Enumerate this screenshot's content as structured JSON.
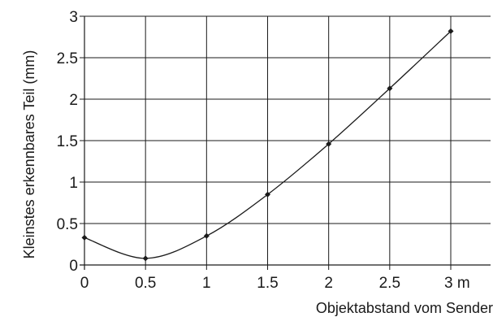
{
  "chart_data": {
    "type": "line",
    "xlabel": "Objektabstand vom Sender",
    "ylabel": "Kleinstes erkennbares Teil (mm)",
    "xlim": [
      0,
      3
    ],
    "ylim": [
      0,
      3
    ],
    "x_ticks": [
      "0",
      "0.5",
      "1",
      "1.5",
      "2",
      "2.5",
      "3 m"
    ],
    "y_ticks": [
      "0",
      "0.5",
      "1",
      "1.5",
      "2",
      "2.5",
      "3"
    ],
    "grid": true,
    "series": [
      {
        "x": [
          0,
          0.5,
          1,
          1.5,
          2,
          2.5,
          3
        ],
        "y": [
          0.33,
          0.08,
          0.35,
          0.85,
          1.46,
          2.13,
          2.82
        ],
        "markers": "diamond"
      }
    ]
  },
  "colors": {
    "line": "#1a1a1a",
    "background": "#ffffff"
  }
}
